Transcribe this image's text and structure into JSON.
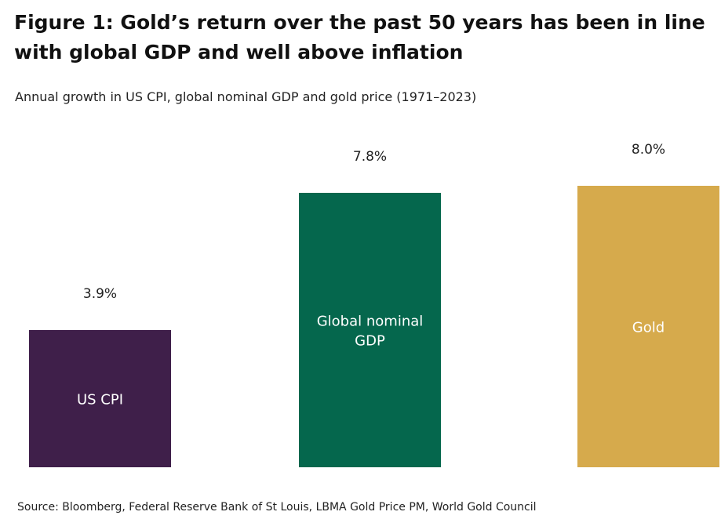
{
  "chart_data": {
    "type": "bar",
    "title": "Figure 1: Gold’s return over the past 50 years has been in line with global GDP and well above inflation",
    "subtitle": "Annual growth in US CPI, global nominal GDP and gold price (1971–2023)",
    "categories": [
      "US CPI",
      "Global nominal GDP",
      "Gold"
    ],
    "category_lines": [
      [
        "US CPI"
      ],
      [
        "Global nominal",
        "GDP"
      ],
      [
        "Gold"
      ]
    ],
    "values": [
      3.9,
      7.8,
      8.0
    ],
    "value_labels": [
      "3.9%",
      "7.8%",
      "8.0%"
    ],
    "colors": [
      "#3f1f4a",
      "#05674d",
      "#d6aa4c"
    ],
    "unit": "%",
    "ylim": [
      0,
      8.0
    ],
    "grid": false,
    "xlabel": "",
    "ylabel": "",
    "source": "Source: Bloomberg, Federal Reserve Bank of St Louis, LBMA Gold Price PM, World Gold Council"
  }
}
